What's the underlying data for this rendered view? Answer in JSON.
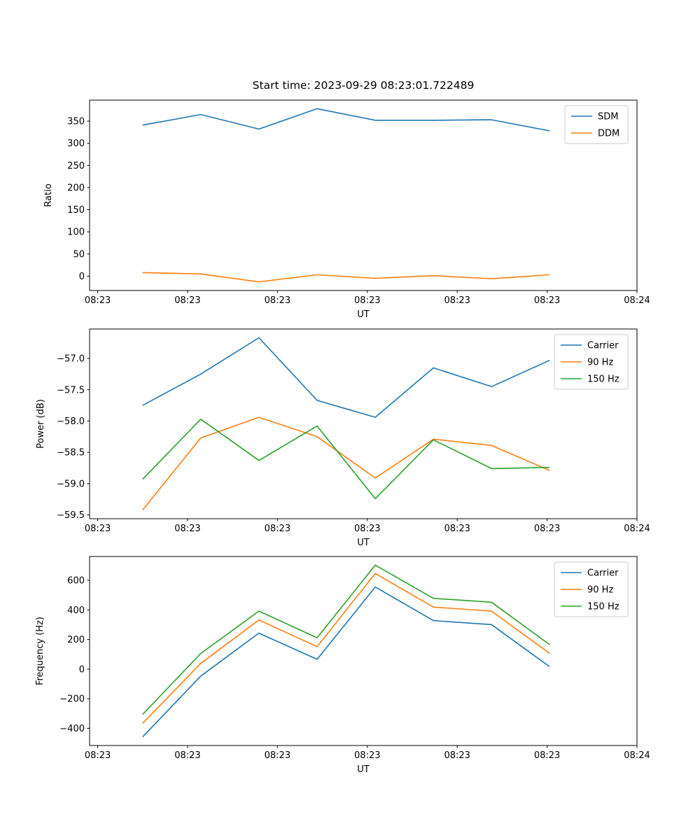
{
  "figure": {
    "background": "#ffffff",
    "text_color": "#000000",
    "spine_color": "#000000",
    "legend_border_color": "#cccccc"
  },
  "chart_data": [
    {
      "type": "line",
      "title": "Start time: 2023-09-29 08:23:01.722489",
      "xlabel": "UT",
      "ylabel": "Ratio",
      "grid": false,
      "legend_position": "upper right",
      "xlim_seconds": [
        -0.9,
        60
      ],
      "x_tick_positions": [
        0,
        10,
        20,
        30,
        40,
        50,
        60
      ],
      "x_tick_labels": [
        "08:23",
        "08:23",
        "08:23",
        "08:23",
        "08:23",
        "08:23",
        "08:24"
      ],
      "ylim": [
        -32.5,
        397.5
      ],
      "y_tick_values": [
        0,
        50,
        100,
        150,
        200,
        250,
        300,
        350
      ],
      "y_tick_labels": [
        "0",
        "50",
        "100",
        "150",
        "200",
        "250",
        "300",
        "350"
      ],
      "x_seconds": [
        5.0,
        11.47,
        17.94,
        24.41,
        30.88,
        37.35,
        43.82,
        50.29
      ],
      "series": [
        {
          "name": "SDM",
          "color": "#1f77b4",
          "values": [
            341,
            365,
            332,
            378,
            352,
            352,
            353,
            328
          ]
        },
        {
          "name": "DDM",
          "color": "#ff7f0e",
          "values": [
            8,
            5,
            -13,
            3,
            -5,
            1,
            -6,
            3
          ]
        }
      ]
    },
    {
      "type": "line",
      "title": "",
      "xlabel": "UT",
      "ylabel": "Power (dB)",
      "grid": false,
      "legend_position": "upper right",
      "xlim_seconds": [
        -0.9,
        60
      ],
      "x_tick_positions": [
        0,
        10,
        20,
        30,
        40,
        50,
        60
      ],
      "x_tick_labels": [
        "08:23",
        "08:23",
        "08:23",
        "08:23",
        "08:23",
        "08:23",
        "08:24"
      ],
      "ylim": [
        -59.56,
        -56.53
      ],
      "y_tick_values": [
        -57.0,
        -57.5,
        -58.0,
        -58.5,
        -59.0,
        -59.5
      ],
      "y_tick_labels": [
        "−57.0",
        "−57.5",
        "−58.0",
        "−58.5",
        "−59.0",
        "−59.5"
      ],
      "x_seconds": [
        5.0,
        11.47,
        17.94,
        24.41,
        30.88,
        37.35,
        43.82,
        50.29
      ],
      "series": [
        {
          "name": "Carrier",
          "color": "#1f77b4",
          "values": [
            -57.75,
            -57.25,
            -56.67,
            -57.67,
            -57.94,
            -57.15,
            -57.45,
            -57.03
          ]
        },
        {
          "name": "90 Hz",
          "color": "#ff7f0e",
          "values": [
            -59.42,
            -58.27,
            -57.94,
            -58.25,
            -58.91,
            -58.29,
            -58.39,
            -58.79
          ]
        },
        {
          "name": "150 Hz",
          "color": "#2ca02c",
          "values": [
            -58.93,
            -57.97,
            -58.63,
            -58.08,
            -59.24,
            -58.3,
            -58.76,
            -58.74
          ]
        }
      ]
    },
    {
      "type": "line",
      "title": "",
      "xlabel": "UT",
      "ylabel": "Frequency (Hz)",
      "grid": false,
      "legend_position": "upper right",
      "xlim_seconds": [
        -0.9,
        60
      ],
      "x_tick_positions": [
        0,
        10,
        20,
        30,
        40,
        50,
        60
      ],
      "x_tick_labels": [
        "08:23",
        "08:23",
        "08:23",
        "08:23",
        "08:23",
        "08:23",
        "08:24"
      ],
      "ylim": [
        -516,
        761
      ],
      "y_tick_values": [
        -400,
        -200,
        0,
        200,
        400,
        600
      ],
      "y_tick_labels": [
        "−400",
        "−200",
        "0",
        "200",
        "400",
        "600"
      ],
      "x_seconds": [
        5.0,
        11.47,
        17.94,
        24.41,
        30.88,
        37.35,
        43.82,
        50.29
      ],
      "series": [
        {
          "name": "Carrier",
          "color": "#1f77b4",
          "values": [
            -458,
            -47,
            243,
            66,
            555,
            328,
            301,
            16
          ]
        },
        {
          "name": "90 Hz",
          "color": "#ff7f0e",
          "values": [
            -366,
            39,
            332,
            152,
            646,
            419,
            392,
            106
          ]
        },
        {
          "name": "150 Hz",
          "color": "#2ca02c",
          "values": [
            -306,
            106,
            392,
            212,
            703,
            478,
            452,
            165
          ]
        }
      ]
    }
  ]
}
